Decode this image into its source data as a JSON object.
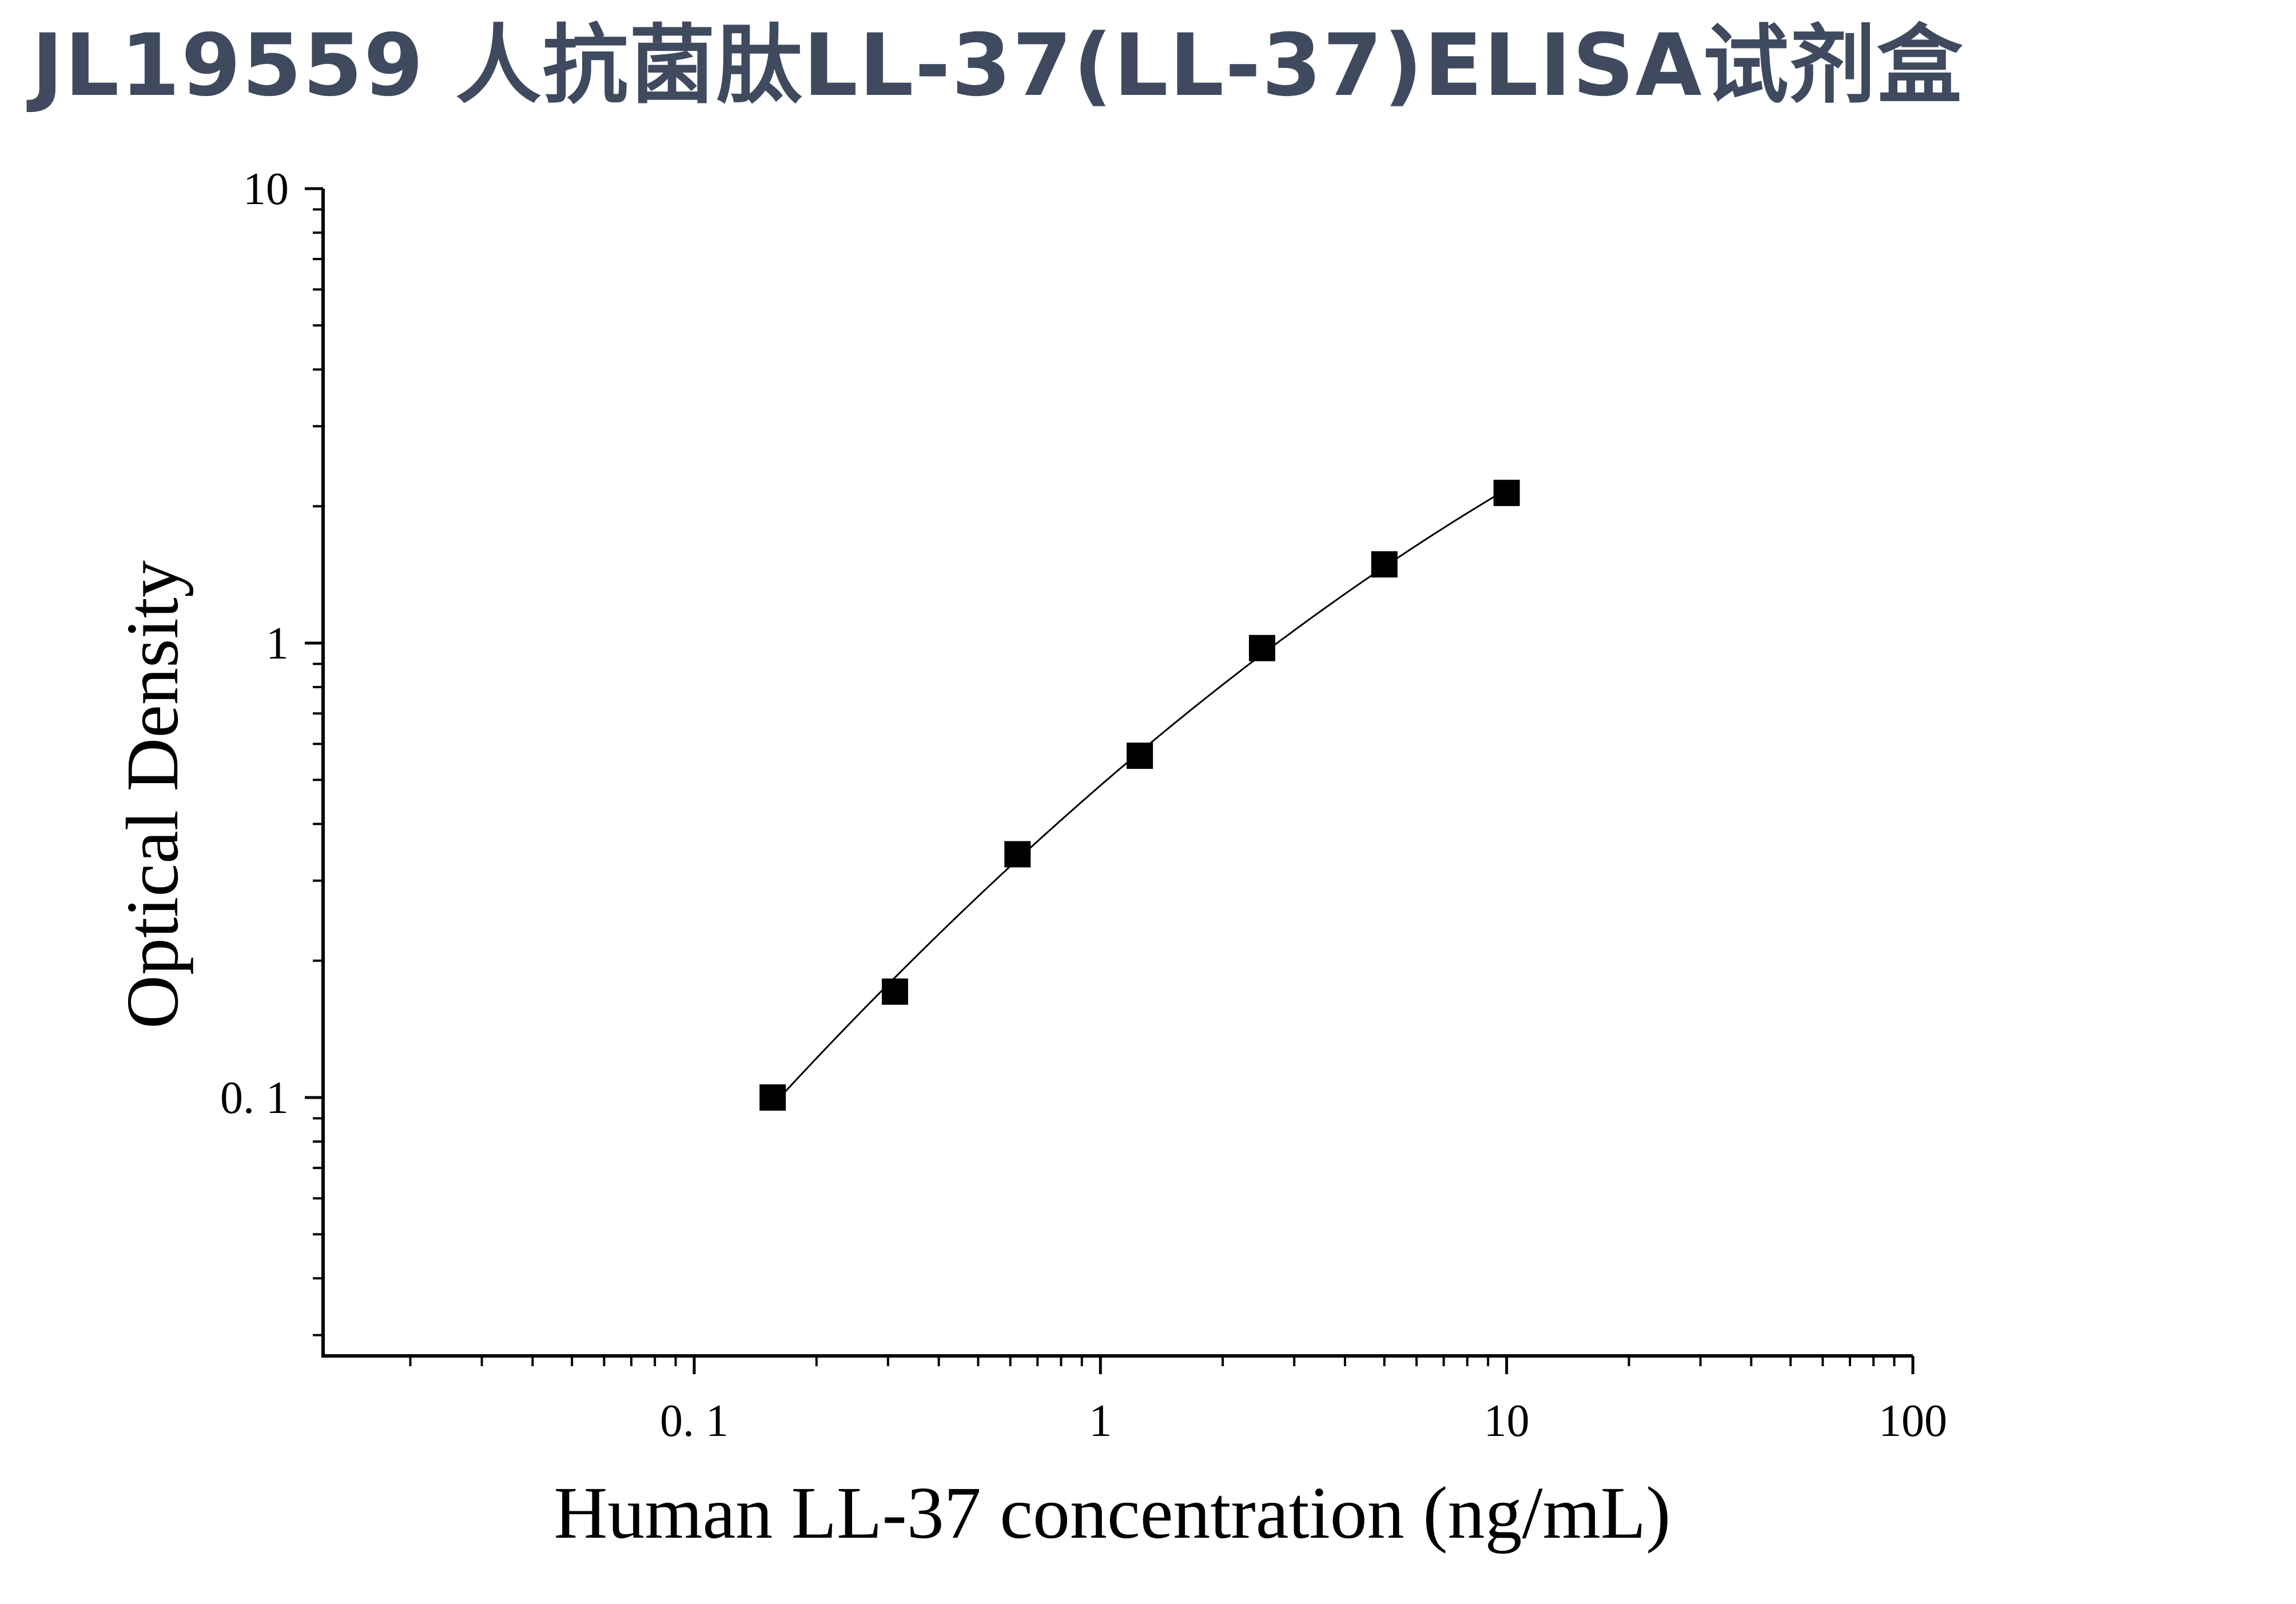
{
  "page": {
    "title": "JL19559 人抗菌肽LL-37(LL-37)ELISA试剂盒",
    "title_color": "#3f4a5f"
  },
  "chart_data": {
    "type": "scatter",
    "title": "",
    "xlabel": "Human LL-37 concentration (ng/mL)",
    "ylabel": "Optical Density",
    "x_scale": "log",
    "y_scale": "log",
    "xlim": [
      0.0122,
      100
    ],
    "ylim": [
      0.027,
      10
    ],
    "x_ticks": [
      {
        "value": 0.1,
        "label": "0. 1"
      },
      {
        "value": 1,
        "label": "1"
      },
      {
        "value": 10,
        "label": "10"
      },
      {
        "value": 100,
        "label": "100"
      }
    ],
    "y_ticks": [
      {
        "value": 0.1,
        "label": "0. 1"
      },
      {
        "value": 1,
        "label": "1"
      },
      {
        "value": 10,
        "label": "10"
      }
    ],
    "grid": false,
    "legend": "none",
    "marker": "square",
    "color": "#000000",
    "fit_curve": true,
    "series": [
      {
        "x": [
          0.156,
          0.312,
          0.625,
          1.25,
          2.5,
          5,
          10
        ],
        "y": [
          0.1,
          0.171,
          0.343,
          0.565,
          0.975,
          1.49,
          2.14
        ]
      }
    ]
  }
}
